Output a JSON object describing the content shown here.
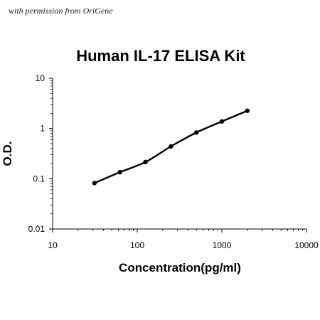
{
  "credit": "with permission from OriGene",
  "chart_data": {
    "type": "scatter",
    "title": "Human IL-17 ELISA Kit",
    "xlabel": "Concentration(pg/ml)",
    "ylabel": "O.D.",
    "xscale": "log",
    "yscale": "log",
    "xlim": [
      10,
      10000
    ],
    "ylim": [
      0.01,
      10
    ],
    "xticks": [
      "10",
      "100",
      "1000",
      "10000"
    ],
    "yticks": [
      "0.01",
      "0.1",
      "1",
      "10"
    ],
    "grid": false,
    "legend": "none",
    "series": [
      {
        "marker": "circle",
        "line": "smooth",
        "color": "#000000",
        "x": [
          31.25,
          62.5,
          125,
          250,
          500,
          1000,
          2000
        ],
        "y": [
          0.082,
          0.135,
          0.215,
          0.44,
          0.83,
          1.38,
          2.25
        ]
      }
    ]
  }
}
